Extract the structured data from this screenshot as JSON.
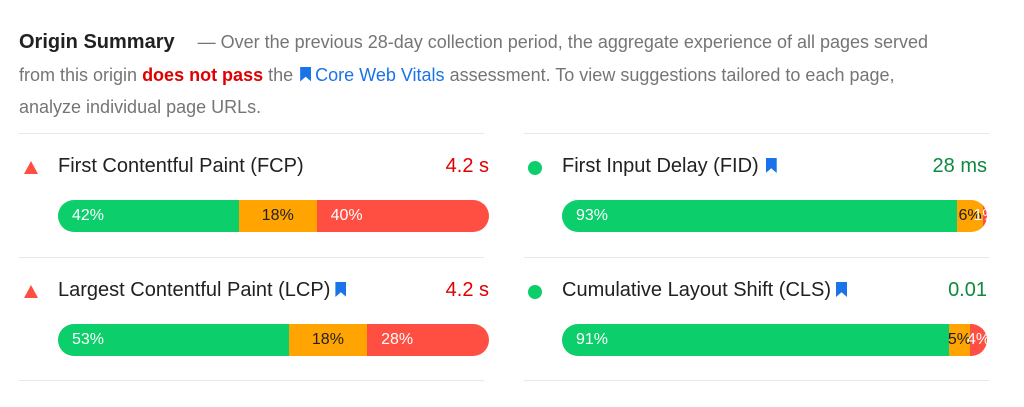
{
  "summary": {
    "title": "Origin Summary",
    "text1": "— Over the previous 28-day collection period, the aggregate experience of all pages served from this origin",
    "fail_text": "does not pass",
    "text2": "the",
    "cwv_link": "Core Web Vitals",
    "text3": "assessment. To view suggestions tailored to each page, analyze individual page URLs."
  },
  "metrics": {
    "fcp": {
      "name": "First Contentful Paint (FCP)",
      "value": "4.2 s",
      "status": "bad",
      "bookmark": false,
      "dist": {
        "good": 42,
        "needs_improvement": 18,
        "poor": 40
      },
      "labels": {
        "good": "42%",
        "needs_improvement": "18%",
        "poor": "40%"
      }
    },
    "fid": {
      "name": "First Input Delay (FID)",
      "value": "28 ms",
      "status": "good",
      "bookmark": true,
      "dist": {
        "good": 93,
        "needs_improvement": 6,
        "poor": 1
      },
      "labels": {
        "good": "93%",
        "needs_improvement": "6%",
        "poor": "1%"
      }
    },
    "lcp": {
      "name": "Largest Contentful Paint (LCP)",
      "value": "4.2 s",
      "status": "bad",
      "bookmark": true,
      "dist": {
        "good": 53,
        "needs_improvement": 18,
        "poor": 28
      },
      "labels": {
        "good": "53%",
        "needs_improvement": "18%",
        "poor": "28%"
      }
    },
    "cls": {
      "name": "Cumulative Layout Shift (CLS)",
      "value": "0.01",
      "status": "good",
      "bookmark": true,
      "dist": {
        "good": 91,
        "needs_improvement": 5,
        "poor": 4
      },
      "labels": {
        "good": "91%",
        "needs_improvement": "5%",
        "poor": "4%"
      }
    }
  },
  "colors": {
    "good": "#0cce6b",
    "needs_improvement": "#ffa400",
    "poor": "#ff4e42",
    "fail_text": "#e00000",
    "link": "#1a73e8"
  },
  "icons": {
    "bad": "red-triangle-icon",
    "good": "green-circle-icon",
    "bookmark": "bookmark-icon"
  }
}
